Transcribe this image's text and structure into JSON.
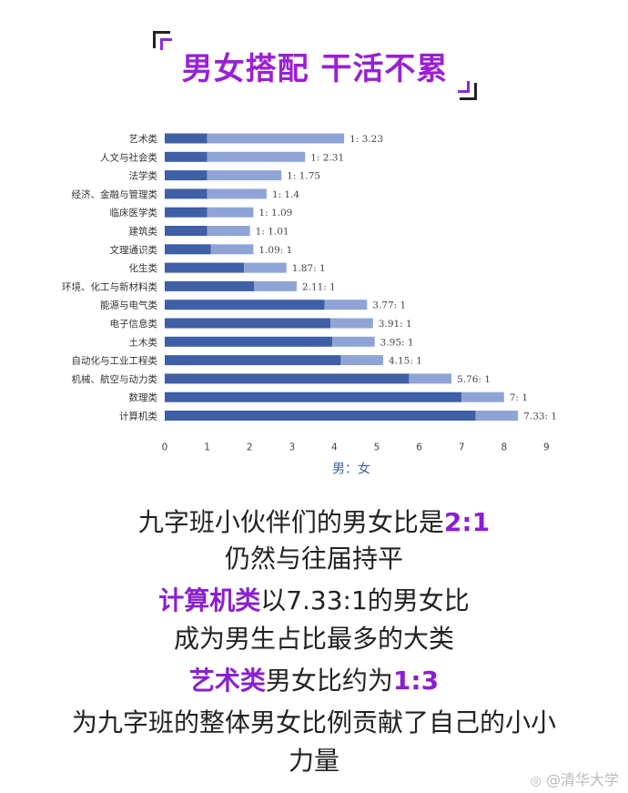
{
  "title": "男女搭配 干活不累",
  "chart_data": {
    "type": "bar",
    "orientation": "horizontal",
    "stacked": true,
    "categories": [
      "艺术类",
      "人文与社会类",
      "法学类",
      "经济、金融与管理类",
      "临床医学类",
      "建筑类",
      "文理通识类",
      "化生类",
      "环境、化工与新材料类",
      "能源与电气类",
      "电子信息类",
      "土木类",
      "自动化与工业工程类",
      "机械、航空与动力类",
      "数理类",
      "计算机类"
    ],
    "series": [
      {
        "name": "男",
        "values": [
          1,
          1,
          1,
          1,
          1,
          1,
          1.09,
          1.87,
          2.11,
          3.77,
          3.91,
          3.95,
          4.15,
          5.76,
          7,
          7.33
        ]
      },
      {
        "name": "女",
        "values": [
          3.23,
          2.31,
          1.75,
          1.4,
          1.09,
          1.01,
          1,
          1,
          1,
          1,
          1,
          1,
          1,
          1,
          1,
          1
        ]
      }
    ],
    "data_labels": [
      "1: 3.23",
      "1: 2.31",
      "1: 1.75",
      "1: 1.4",
      "1: 1.09",
      "1: 1.01",
      "1.09: 1",
      "1.87: 1",
      "2.11: 1",
      "3.77: 1",
      "3.91: 1",
      "3.95: 1",
      "4.15: 1",
      "5.76: 1",
      "7: 1",
      "7.33: 1"
    ],
    "xlim": [
      0,
      9
    ],
    "xticks": [
      "0",
      "1",
      "2",
      "3",
      "4",
      "5",
      "6",
      "7",
      "8",
      "9"
    ],
    "xlabel": "男：女",
    "colors": {
      "male": "#3f5fa6",
      "female": "#8fa4d6"
    },
    "grid": false
  },
  "captions": {
    "line1_a": "九字班小伙伴们的男女比是",
    "line1_b": "2:1",
    "line2": "仍然与往届持平",
    "line3_a": "计算机类",
    "line3_b": "以7.33:1的男女比",
    "line4": "成为男生占比最多的大类",
    "line5_a": "艺术类",
    "line5_b": "男女比约为",
    "line5_c": "1:3",
    "line6": "为九字班的整体男女比例贡献了自己的小小",
    "line7": "力量"
  },
  "watermark": {
    "icon": "weibo-icon",
    "text": "@清华大学"
  }
}
